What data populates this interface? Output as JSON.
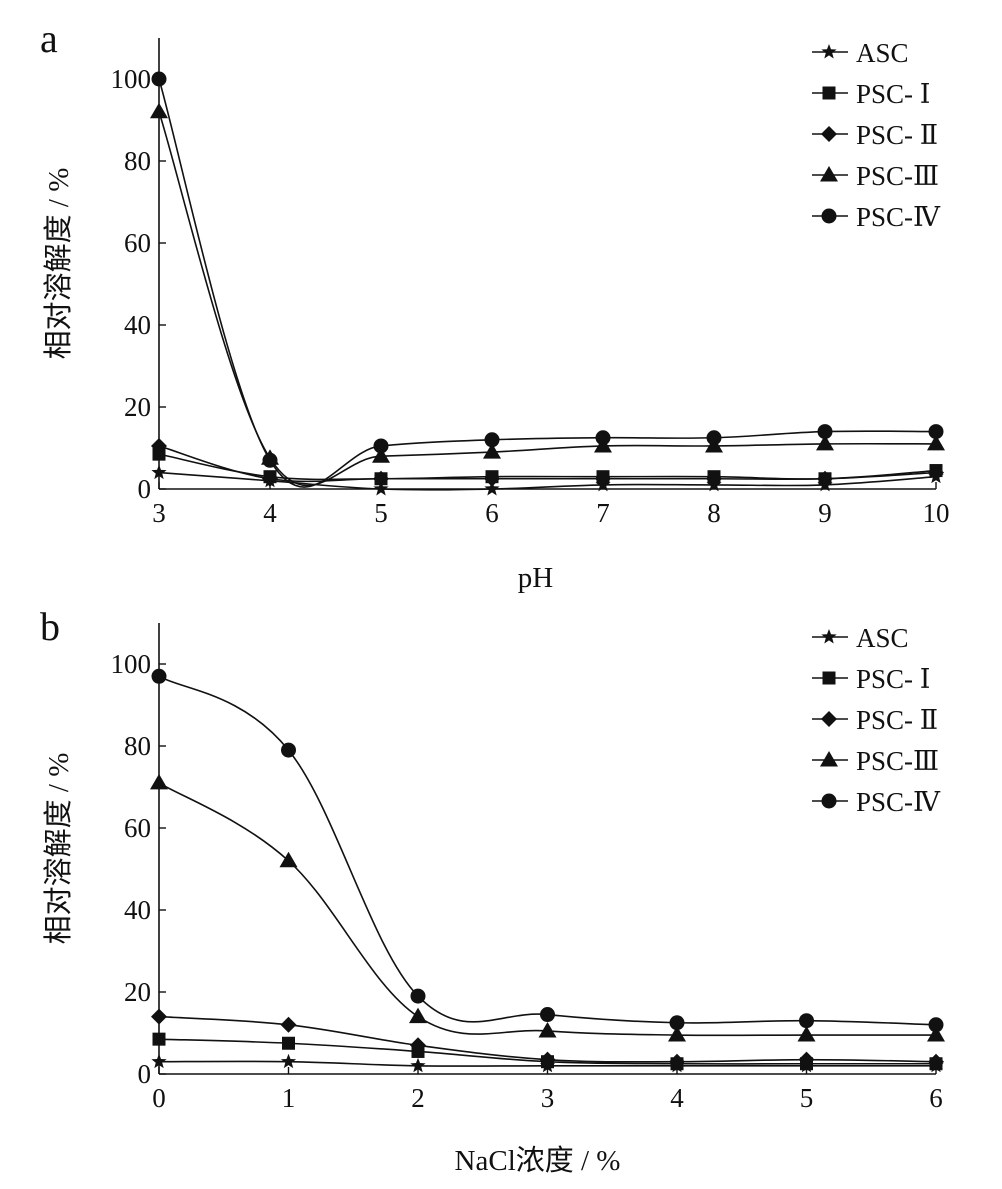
{
  "chart_data": [
    {
      "panel": "a",
      "type": "line",
      "xlabel": "pH",
      "ylabel": "相对溶解度 / %",
      "x": [
        3,
        4,
        5,
        6,
        7,
        8,
        9,
        10
      ],
      "xlim": [
        3,
        10
      ],
      "ylim": [
        0,
        110
      ],
      "xticks": [
        "3",
        "4",
        "5",
        "6",
        "7",
        "8",
        "9",
        "10"
      ],
      "yticks": [
        "0",
        "20",
        "40",
        "60",
        "80",
        "100"
      ],
      "legend_position": "top-right",
      "grid": false,
      "series": [
        {
          "name": "ASC",
          "marker": "star",
          "values": [
            4,
            2,
            0,
            0,
            1,
            1,
            1,
            3
          ]
        },
        {
          "name": "PSC- Ⅰ",
          "marker": "square",
          "values": [
            8.5,
            3,
            2.5,
            3,
            3,
            3,
            2.5,
            4.5
          ]
        },
        {
          "name": "PSC- Ⅱ",
          "marker": "diamond",
          "values": [
            10.5,
            2.5,
            2.5,
            2.5,
            2.5,
            2.5,
            2.5,
            4
          ]
        },
        {
          "name": "PSC-Ⅲ",
          "marker": "triangle",
          "values": [
            92,
            7.5,
            8,
            9,
            10.5,
            10.5,
            11,
            11
          ]
        },
        {
          "name": "PSC-Ⅳ",
          "marker": "circle",
          "values": [
            100,
            7,
            10.5,
            12,
            12.5,
            12.5,
            14,
            14
          ]
        }
      ]
    },
    {
      "panel": "b",
      "type": "line",
      "xlabel": "NaCl浓度 / %",
      "ylabel": "相对溶解度 / %",
      "x": [
        0,
        1,
        2,
        3,
        4,
        5,
        6
      ],
      "xlim": [
        0,
        6
      ],
      "ylim": [
        0,
        110
      ],
      "xticks": [
        "0",
        "1",
        "2",
        "3",
        "4",
        "5",
        "6"
      ],
      "yticks": [
        "0",
        "20",
        "40",
        "60",
        "80",
        "100"
      ],
      "legend_position": "top-right",
      "grid": false,
      "series": [
        {
          "name": "ASC",
          "marker": "star",
          "values": [
            3,
            3,
            2,
            2,
            2,
            2,
            2
          ]
        },
        {
          "name": "PSC- Ⅰ",
          "marker": "square",
          "values": [
            8.5,
            7.5,
            5.5,
            3,
            2.5,
            2.5,
            2.5
          ]
        },
        {
          "name": "PSC- Ⅱ",
          "marker": "diamond",
          "values": [
            14,
            12,
            7,
            3.5,
            3,
            3.5,
            3
          ]
        },
        {
          "name": "PSC-Ⅲ",
          "marker": "triangle",
          "values": [
            71,
            52,
            14,
            10.5,
            9.5,
            9.5,
            9.5
          ]
        },
        {
          "name": "PSC-Ⅳ",
          "marker": "circle",
          "values": [
            97,
            79,
            19,
            14.5,
            12.5,
            13,
            12
          ]
        }
      ]
    }
  ]
}
